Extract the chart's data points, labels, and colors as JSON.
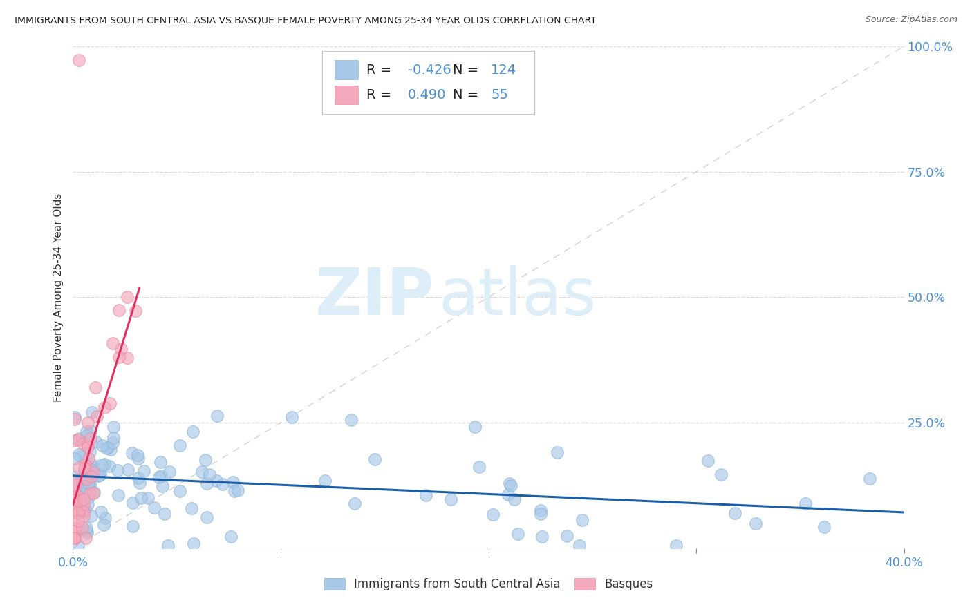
{
  "title": "IMMIGRANTS FROM SOUTH CENTRAL ASIA VS BASQUE FEMALE POVERTY AMONG 25-34 YEAR OLDS CORRELATION CHART",
  "source": "Source: ZipAtlas.com",
  "ylabel": "Female Poverty Among 25-34 Year Olds",
  "xlim": [
    0.0,
    0.4
  ],
  "ylim": [
    0.0,
    1.0
  ],
  "blue_R": "-0.426",
  "blue_N": "124",
  "pink_R": "0.490",
  "pink_N": "55",
  "blue_color": "#a8c8e8",
  "pink_color": "#f4a8bc",
  "blue_edge_color": "#90b8d8",
  "pink_edge_color": "#e890a8",
  "blue_line_color": "#1a5fa8",
  "pink_line_color": "#e03060",
  "ref_line_color": "#c8c8c8",
  "watermark_zip": "ZIP",
  "watermark_atlas": "atlas",
  "watermark_color": "#ddeef8",
  "legend_label_blue": "Immigrants from South Central Asia",
  "legend_label_pink": "Basques",
  "grid_color": "#d8d8d8",
  "tick_color": "#888888",
  "right_label_color": "#4a90d9",
  "title_color": "#222222",
  "source_color": "#666666",
  "ylabel_color": "#333333"
}
